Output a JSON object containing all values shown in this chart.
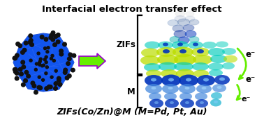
{
  "title": "Interfacial electron transfer effect",
  "subtitle": "ZIFs(Co/Zn)@M (M=Pd, Pt, Au)",
  "title_fontsize": 9.5,
  "subtitle_fontsize": 9.0,
  "bg_color": "#ffffff",
  "arrow_color": "#66ee00",
  "arrow_border_color": "#9900cc",
  "text_color": "#000000",
  "zifs_label": "ZIFs",
  "m_label": "M",
  "e_minus": "e⁻",
  "nanoparticle_face_color": "#1155ee",
  "dot_color": "#111111",
  "cyan_blob": "#00ccbb",
  "yellow_blob": "#bbdd00",
  "blue_blob": "#0033bb",
  "ltblue_blob": "#4488dd",
  "gray_blob": "#aaaaaa",
  "teal_blob": "#00aaaa"
}
